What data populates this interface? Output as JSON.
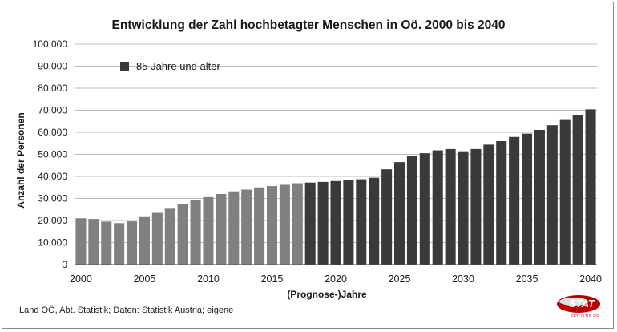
{
  "chart_data": {
    "type": "bar",
    "title": "Entwicklung der Zahl hochbetagter Menschen in Oö. 2000 bis 2040",
    "xlabel": "(Prognose-)Jahre",
    "ylabel": "Anzahl der Personen",
    "ylim": [
      0,
      100000
    ],
    "yticks": [
      "0",
      "10.000",
      "20.000",
      "30.000",
      "40.000",
      "50.000",
      "60.000",
      "70.000",
      "80.000",
      "90.000",
      "100.000"
    ],
    "xtick_labels": [
      "2000",
      "2005",
      "2010",
      "2015",
      "2020",
      "2025",
      "2030",
      "2035",
      "2040"
    ],
    "legend": "85 Jahre und älter",
    "legend_position": "top-left",
    "grid": true,
    "categories": [
      2000,
      2001,
      2002,
      2003,
      2004,
      2005,
      2006,
      2007,
      2008,
      2009,
      2010,
      2011,
      2012,
      2013,
      2014,
      2015,
      2016,
      2017,
      2018,
      2019,
      2020,
      2021,
      2022,
      2023,
      2024,
      2025,
      2026,
      2027,
      2028,
      2029,
      2030,
      2031,
      2032,
      2033,
      2034,
      2035,
      2036,
      2037,
      2038,
      2039,
      2040
    ],
    "values": [
      21000,
      20700,
      19500,
      18800,
      19600,
      21900,
      23800,
      25700,
      27500,
      29200,
      30600,
      32000,
      33200,
      34000,
      35000,
      35600,
      36200,
      36900,
      37200,
      37500,
      37900,
      38300,
      38700,
      39400,
      43200,
      46500,
      49300,
      50500,
      51800,
      52400,
      51400,
      52400,
      54400,
      56000,
      57900,
      59400,
      61100,
      63200,
      65600,
      67700,
      70400
    ],
    "series_colors": {
      "observed": "#808080",
      "projected": "#3a3a3a"
    },
    "first_projected_year": 2018
  },
  "footer": {
    "source": "Land OÖ, Abt. Statistik; Daten: Statistik Austria; eigene"
  },
  "logo": {
    "text": "STAT",
    "subtext": "STATISTIK OÖ"
  }
}
